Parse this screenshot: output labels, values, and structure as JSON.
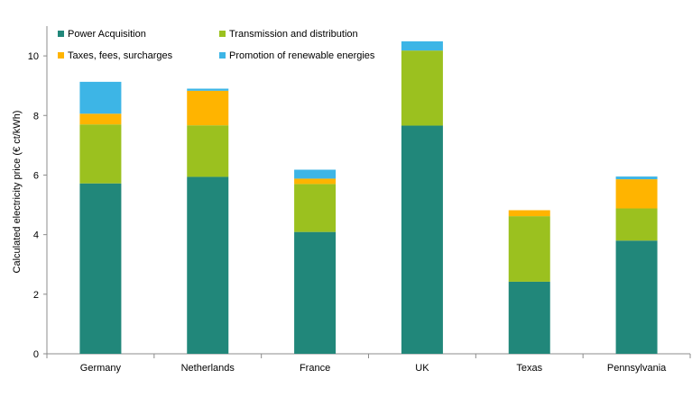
{
  "chart_data": {
    "type": "bar",
    "stacked": true,
    "categories": [
      "Germany",
      "Netherlands",
      "France",
      "UK",
      "Texas",
      "Pennsylvania"
    ],
    "series": [
      {
        "name": "Power Acquisition",
        "color": "#21877a",
        "values": [
          5.72,
          5.94,
          4.09,
          7.66,
          2.42,
          3.8
        ]
      },
      {
        "name": "Transmission and distribution",
        "color": "#9bc11f",
        "values": [
          1.98,
          1.73,
          1.61,
          2.52,
          2.2,
          1.08
        ]
      },
      {
        "name": "Taxes, fees, surcharges",
        "color": "#ffb400",
        "values": [
          0.36,
          1.16,
          0.18,
          0.0,
          0.2,
          0.98
        ]
      },
      {
        "name": "Promotion of renewable energies",
        "color": "#3db5e6",
        "values": [
          1.07,
          0.07,
          0.3,
          0.31,
          0.0,
          0.09
        ]
      }
    ],
    "ylabel": "Calculated electricity price (€ ct/kWh)",
    "xlabel": "",
    "ylim": [
      0,
      11
    ],
    "yticks": [
      0,
      2,
      4,
      6,
      8,
      10
    ],
    "grid": false,
    "legend": "top-left"
  }
}
